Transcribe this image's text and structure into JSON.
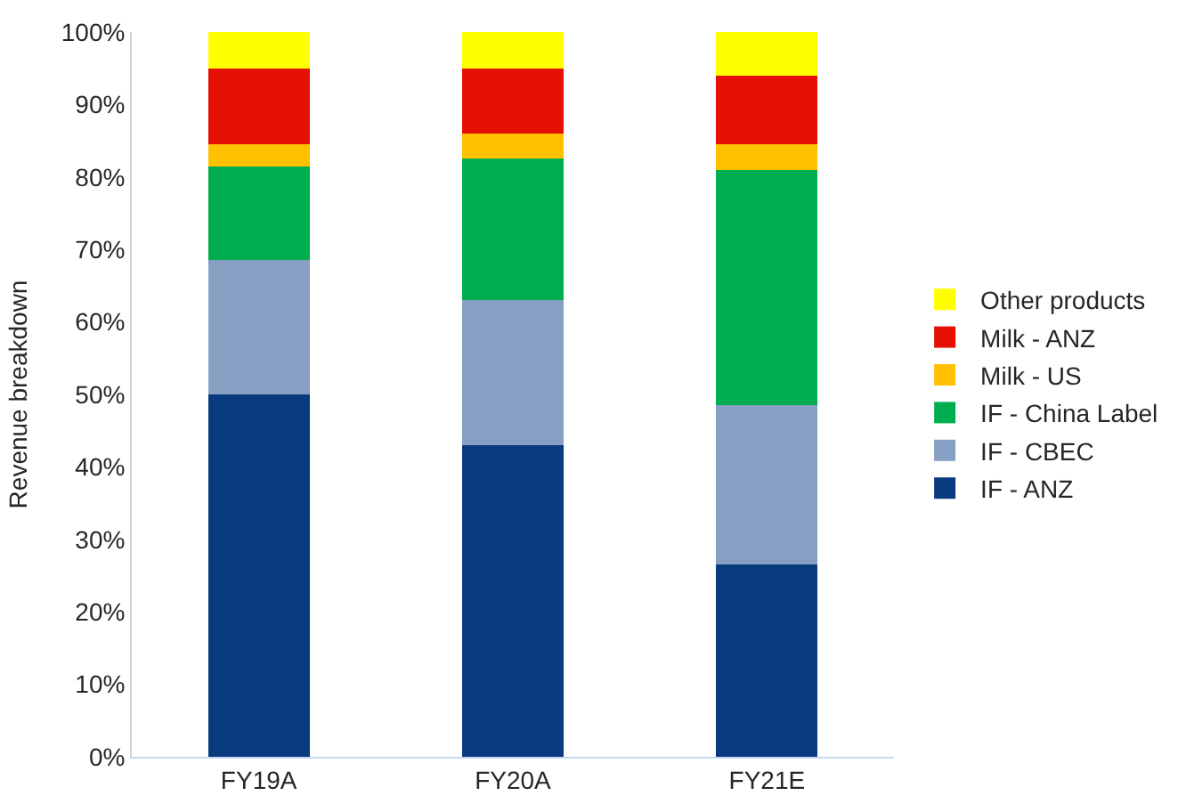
{
  "chart_data": {
    "type": "bar",
    "stacked": true,
    "ylabel": "Revenue breakdown",
    "categories": [
      "FY19A",
      "FY20A",
      "FY21E"
    ],
    "series": [
      {
        "name": "IF - ANZ",
        "color": "#0a3a7e",
        "values": [
          50,
          43,
          26.5
        ]
      },
      {
        "name": "IF - CBEC",
        "color": "#869fc3",
        "values": [
          18.5,
          20,
          22
        ]
      },
      {
        "name": "IF - China Label",
        "color": "#00ae4f",
        "values": [
          13,
          19.5,
          32.5
        ]
      },
      {
        "name": "Milk - US",
        "color": "#ffc000",
        "values": [
          3,
          3.5,
          3.5
        ]
      },
      {
        "name": "Milk - ANZ",
        "color": "#e60f04",
        "values": [
          10.5,
          9,
          9.5
        ]
      },
      {
        "name": "Other products",
        "color": "#ffff00",
        "values": [
          5,
          5,
          6
        ]
      }
    ],
    "ylim": [
      0,
      100
    ],
    "yticks": [
      {
        "value": 0,
        "label": "0%"
      },
      {
        "value": 10,
        "label": "10%"
      },
      {
        "value": 20,
        "label": "20%"
      },
      {
        "value": 30,
        "label": "30%"
      },
      {
        "value": 40,
        "label": "40%"
      },
      {
        "value": 50,
        "label": "50%"
      },
      {
        "value": 60,
        "label": "60%"
      },
      {
        "value": 70,
        "label": "70%"
      },
      {
        "value": 80,
        "label": "80%"
      },
      {
        "value": 90,
        "label": "90%"
      },
      {
        "value": 100,
        "label": "100%"
      }
    ],
    "legend": "right"
  }
}
